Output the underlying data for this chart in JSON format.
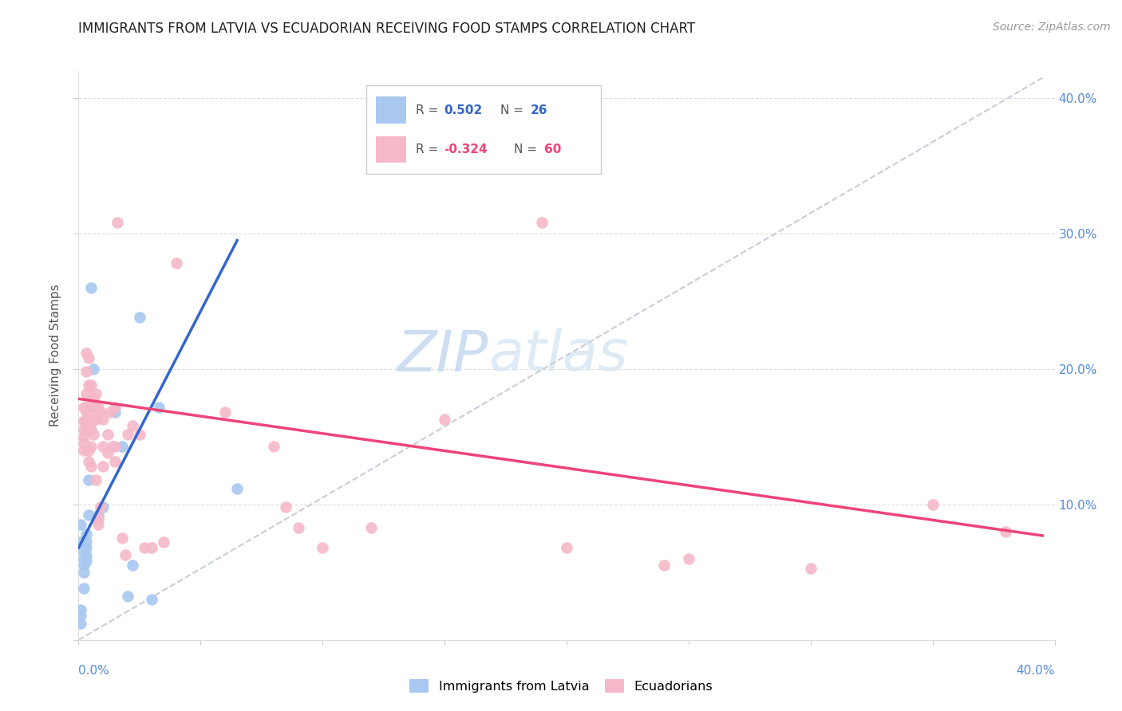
{
  "title": "IMMIGRANTS FROM LATVIA VS ECUADORIAN RECEIVING FOOD STAMPS CORRELATION CHART",
  "source": "Source: ZipAtlas.com",
  "ylabel": "Receiving Food Stamps",
  "color_latvia": "#A8C8F0",
  "color_ecu": "#F5B8C8",
  "color_line_latvia": "#3366CC",
  "color_line_ecu": "#EE4477",
  "color_line_dashed": "#C8CDD8",
  "xlim": [
    0.0,
    0.4
  ],
  "ylim": [
    0.0,
    0.42
  ],
  "ytick_vals": [
    0.0,
    0.1,
    0.2,
    0.3,
    0.4
  ],
  "ytick_labels": [
    "",
    "10.0%",
    "20.0%",
    "30.0%",
    "40.0%"
  ],
  "latvia_trendline": [
    [
      0.0,
      0.068
    ],
    [
      0.065,
      0.295
    ]
  ],
  "ecu_trendline": [
    [
      0.0,
      0.178
    ],
    [
      0.395,
      0.077
    ]
  ],
  "dashed_line": [
    [
      0.0,
      0.0
    ],
    [
      0.395,
      0.415
    ]
  ],
  "latvia_points": [
    [
      0.001,
      0.085
    ],
    [
      0.001,
      0.072
    ],
    [
      0.002,
      0.065
    ],
    [
      0.002,
      0.06
    ],
    [
      0.002,
      0.055
    ],
    [
      0.002,
      0.05
    ],
    [
      0.003,
      0.078
    ],
    [
      0.003,
      0.073
    ],
    [
      0.003,
      0.068
    ],
    [
      0.003,
      0.062
    ],
    [
      0.003,
      0.058
    ],
    [
      0.004,
      0.118
    ],
    [
      0.004,
      0.092
    ],
    [
      0.005,
      0.26
    ],
    [
      0.005,
      0.155
    ],
    [
      0.006,
      0.2
    ],
    [
      0.008,
      0.092
    ],
    [
      0.01,
      0.098
    ],
    [
      0.015,
      0.168
    ],
    [
      0.018,
      0.143
    ],
    [
      0.02,
      0.032
    ],
    [
      0.022,
      0.055
    ],
    [
      0.025,
      0.238
    ],
    [
      0.03,
      0.03
    ],
    [
      0.033,
      0.172
    ],
    [
      0.065,
      0.112
    ],
    [
      0.001,
      0.012
    ],
    [
      0.001,
      0.022
    ],
    [
      0.001,
      0.018
    ],
    [
      0.002,
      0.038
    ]
  ],
  "ecu_points": [
    [
      0.002,
      0.172
    ],
    [
      0.002,
      0.162
    ],
    [
      0.002,
      0.155
    ],
    [
      0.002,
      0.15
    ],
    [
      0.002,
      0.145
    ],
    [
      0.002,
      0.14
    ],
    [
      0.003,
      0.182
    ],
    [
      0.003,
      0.172
    ],
    [
      0.003,
      0.168
    ],
    [
      0.003,
      0.163
    ],
    [
      0.003,
      0.198
    ],
    [
      0.003,
      0.212
    ],
    [
      0.004,
      0.208
    ],
    [
      0.004,
      0.188
    ],
    [
      0.004,
      0.172
    ],
    [
      0.004,
      0.155
    ],
    [
      0.004,
      0.14
    ],
    [
      0.004,
      0.132
    ],
    [
      0.005,
      0.188
    ],
    [
      0.005,
      0.172
    ],
    [
      0.005,
      0.163
    ],
    [
      0.005,
      0.155
    ],
    [
      0.005,
      0.143
    ],
    [
      0.005,
      0.128
    ],
    [
      0.006,
      0.178
    ],
    [
      0.006,
      0.172
    ],
    [
      0.006,
      0.163
    ],
    [
      0.006,
      0.152
    ],
    [
      0.007,
      0.182
    ],
    [
      0.007,
      0.172
    ],
    [
      0.007,
      0.163
    ],
    [
      0.007,
      0.118
    ],
    [
      0.008,
      0.172
    ],
    [
      0.008,
      0.09
    ],
    [
      0.008,
      0.085
    ],
    [
      0.009,
      0.168
    ],
    [
      0.009,
      0.098
    ],
    [
      0.01,
      0.163
    ],
    [
      0.01,
      0.143
    ],
    [
      0.01,
      0.128
    ],
    [
      0.012,
      0.152
    ],
    [
      0.012,
      0.138
    ],
    [
      0.013,
      0.168
    ],
    [
      0.014,
      0.143
    ],
    [
      0.015,
      0.172
    ],
    [
      0.015,
      0.143
    ],
    [
      0.015,
      0.132
    ],
    [
      0.016,
      0.308
    ],
    [
      0.018,
      0.075
    ],
    [
      0.019,
      0.063
    ],
    [
      0.02,
      0.152
    ],
    [
      0.022,
      0.158
    ],
    [
      0.025,
      0.152
    ],
    [
      0.027,
      0.068
    ],
    [
      0.03,
      0.068
    ],
    [
      0.035,
      0.072
    ],
    [
      0.04,
      0.278
    ],
    [
      0.06,
      0.168
    ],
    [
      0.08,
      0.143
    ],
    [
      0.085,
      0.098
    ],
    [
      0.09,
      0.083
    ],
    [
      0.1,
      0.068
    ],
    [
      0.12,
      0.083
    ],
    [
      0.15,
      0.163
    ],
    [
      0.2,
      0.068
    ],
    [
      0.24,
      0.055
    ],
    [
      0.25,
      0.06
    ],
    [
      0.3,
      0.053
    ],
    [
      0.19,
      0.308
    ],
    [
      0.35,
      0.1
    ],
    [
      0.38,
      0.08
    ]
  ]
}
